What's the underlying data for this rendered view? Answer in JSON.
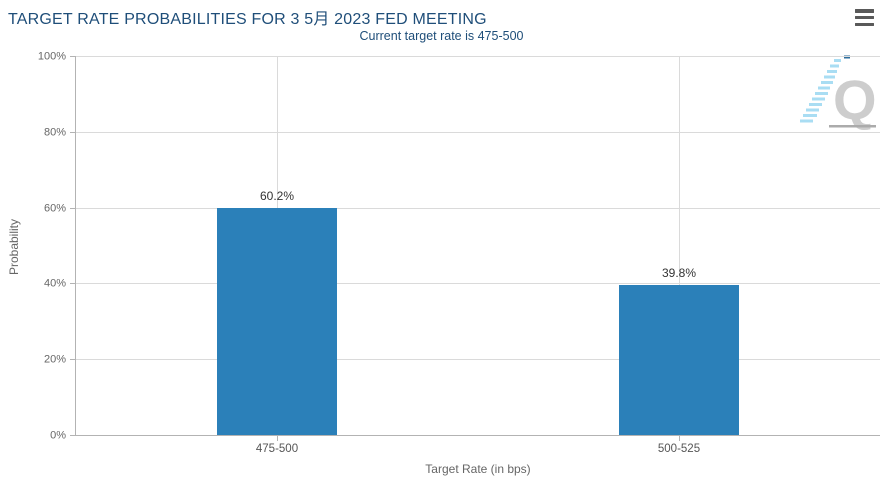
{
  "header": {
    "title": "TARGET RATE PROBABILITIES FOR 3 5月 2023 FED MEETING",
    "subtitle": "Current target rate is 475-500"
  },
  "menu": {
    "icon": "hamburger-menu-icon"
  },
  "watermark": {
    "icon": "quandl-q-logo",
    "letter": "Q"
  },
  "chart_data": {
    "type": "bar",
    "title": "TARGET RATE PROBABILITIES FOR 3 5月 2023 FED MEETING",
    "subtitle": "Current target rate is 475-500",
    "categories": [
      "475-500",
      "500-525"
    ],
    "values": [
      60.2,
      39.8
    ],
    "value_labels": [
      "60.2%",
      "39.8%"
    ],
    "xlabel": "Target Rate (in bps)",
    "ylabel": "Probability",
    "ylim": [
      0,
      100
    ],
    "yticks": [
      "0%",
      "20%",
      "40%",
      "60%",
      "80%",
      "100%"
    ],
    "grid": true,
    "legend": "none",
    "bar_color": "#2b80b9"
  },
  "colors": {
    "title_text": "#1f4e79",
    "bar": "#2b80b9",
    "gridline": "#dadada",
    "axis_line": "#b3b3b3",
    "axis_text": "#666666",
    "value_label_text": "#333333",
    "menu_icon": "#595959",
    "watermark_gray": "#cdcdcd",
    "watermark_blue": "#a9ddf3"
  }
}
